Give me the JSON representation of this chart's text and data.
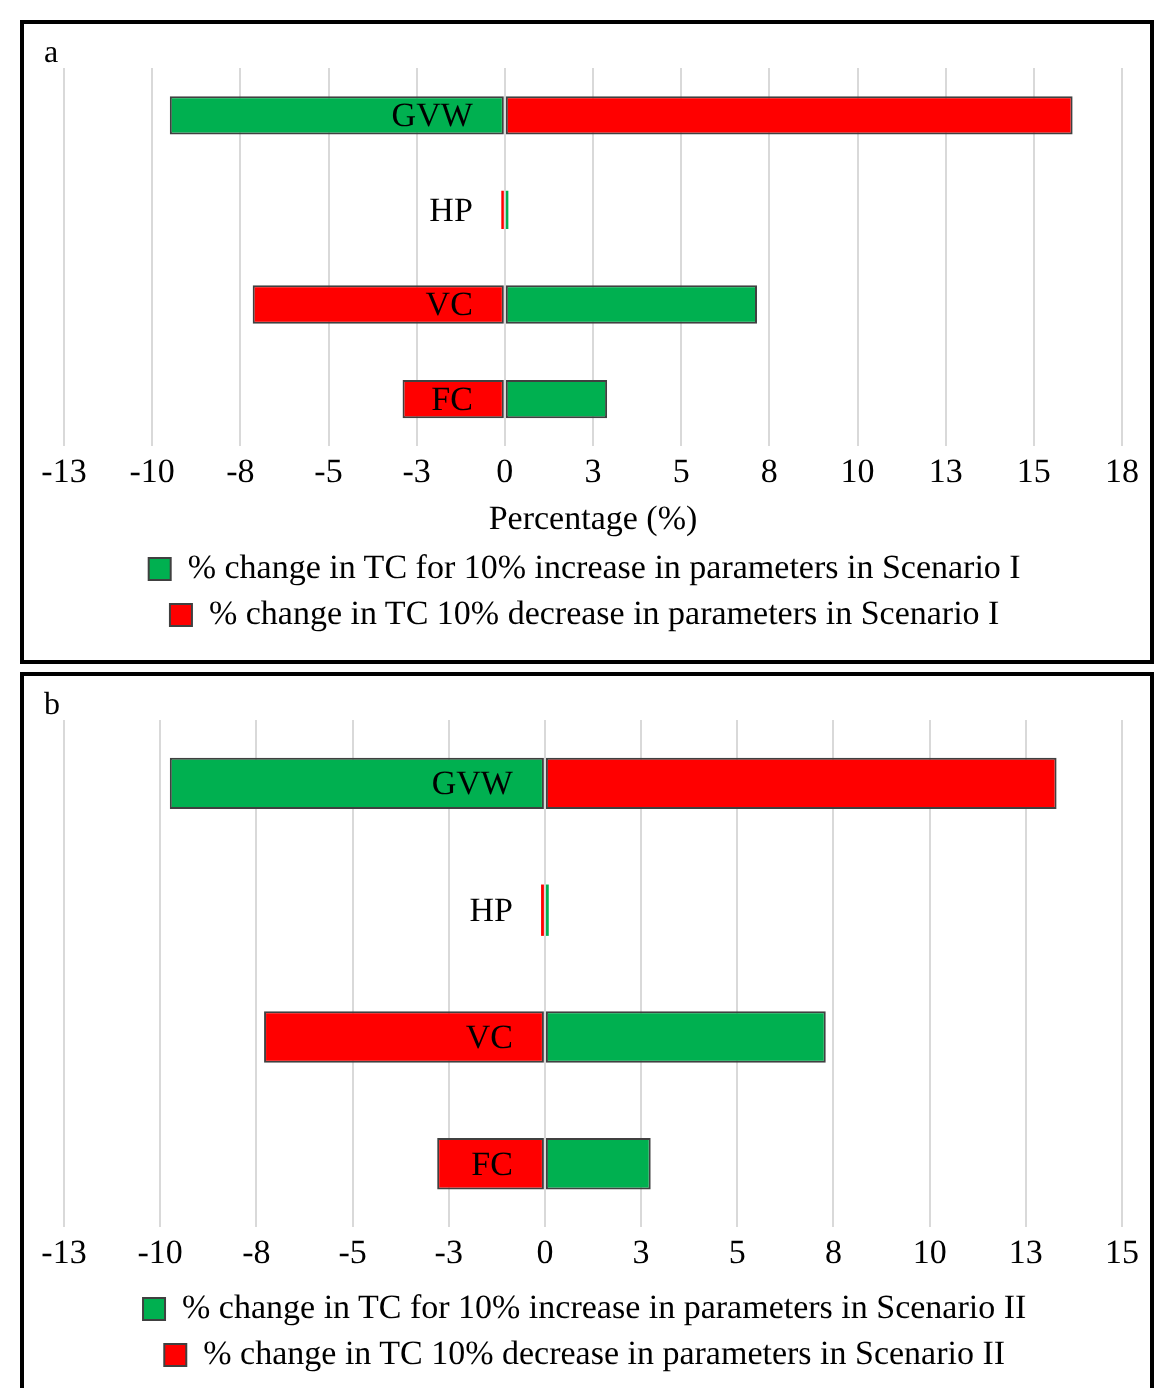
{
  "chart_data": [
    {
      "type": "bar",
      "title": "a",
      "orientation": "horizontal",
      "stacked": true,
      "categories": [
        "GVW",
        "HP",
        "VC",
        "FC"
      ],
      "xlabel": "Percentage (%)",
      "series": [
        {
          "name": "% change in TC for 10% increase in parameters in Scenario I",
          "color": "#00b050",
          "values": [
            -9.5,
            0.1,
            7.15,
            2.9
          ]
        },
        {
          "name": "% change in TC 10% decrease in parameters in Scenario I",
          "color": "#ff0000",
          "values": [
            16.1,
            -0.1,
            -7.15,
            -2.9
          ]
        }
      ],
      "xlim": [
        -12.5,
        17.5
      ],
      "xticks": [
        {
          "value": -12.5,
          "label": "-13"
        },
        -10,
        {
          "value": -7.5,
          "label": "-8"
        },
        -5,
        {
          "value": -2.5,
          "label": "-3"
        },
        0,
        {
          "value": 2.5,
          "label": "3"
        },
        5,
        {
          "value": 7.5,
          "label": "8"
        },
        10,
        {
          "value": 12.5,
          "label": "13"
        },
        15,
        {
          "value": 17.5,
          "label": "18"
        }
      ],
      "grid": "x",
      "legend": "bottom"
    },
    {
      "type": "bar",
      "title": "b",
      "orientation": "horizontal",
      "stacked": true,
      "categories": [
        "GVW",
        "HP",
        "VC",
        "FC"
      ],
      "series": [
        {
          "name": "% change in TC for 10% increase in parameters in Scenario II",
          "color": "#00b050",
          "values": [
            -9.75,
            0.1,
            7.3,
            2.75
          ]
        },
        {
          "name": "% change in TC 10% decrease in parameters in Scenario II",
          "color": "#ff0000",
          "values": [
            13.3,
            -0.1,
            -7.3,
            -2.8
          ]
        }
      ],
      "xlim": [
        -12.5,
        15
      ],
      "xticks": [
        {
          "value": -12.5,
          "label": "-13"
        },
        -10,
        {
          "value": -7.5,
          "label": "-8"
        },
        -5,
        {
          "value": -2.5,
          "label": "-3"
        },
        0,
        {
          "value": 2.5,
          "label": "3"
        },
        5,
        {
          "value": 7.5,
          "label": "8"
        },
        10,
        {
          "value": 12.5,
          "label": "13"
        },
        15
      ],
      "grid": "x",
      "legend": "bottom"
    }
  ]
}
